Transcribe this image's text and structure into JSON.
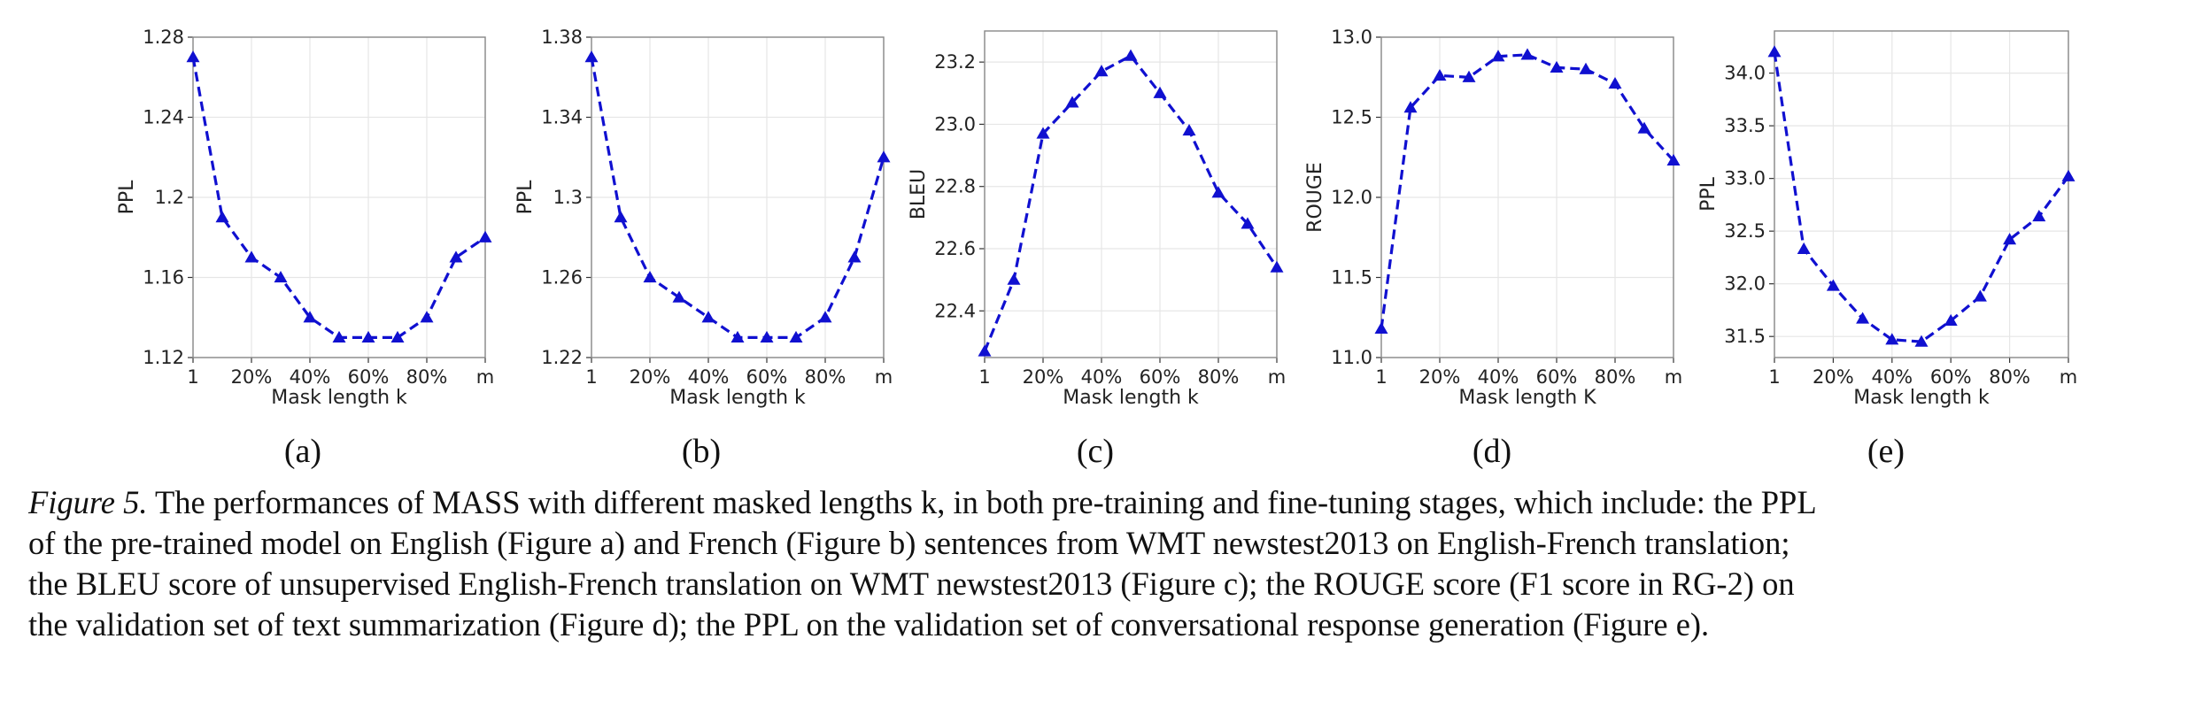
{
  "chart_data": [
    {
      "type": "line",
      "panel_label": "(a)",
      "title": "",
      "xlabel": "Mask length k",
      "ylabel": "PPL",
      "x_tick_labels": [
        "1",
        "20%",
        "40%",
        "60%",
        "80%",
        "m"
      ],
      "y_tick_labels": [
        "1.12",
        "1.16",
        "1.2",
        "1.24",
        "1.28"
      ],
      "ylim": [
        1.12,
        1.28
      ],
      "x": [
        1,
        2,
        3,
        4,
        5,
        6,
        7,
        8,
        9,
        10,
        11
      ],
      "values": [
        1.27,
        1.19,
        1.17,
        1.16,
        1.14,
        1.13,
        1.13,
        1.13,
        1.14,
        1.17,
        1.18
      ],
      "grid": true,
      "color": "#1010d0",
      "marker": "triangle-up",
      "line_style": "dashed"
    },
    {
      "type": "line",
      "panel_label": "(b)",
      "title": "",
      "xlabel": "Mask length k",
      "ylabel": "PPL",
      "x_tick_labels": [
        "1",
        "20%",
        "40%",
        "60%",
        "80%",
        "m"
      ],
      "y_tick_labels": [
        "1.22",
        "1.26",
        "1.3",
        "1.34",
        "1.38"
      ],
      "ylim": [
        1.22,
        1.38
      ],
      "x": [
        1,
        2,
        3,
        4,
        5,
        6,
        7,
        8,
        9,
        10,
        11
      ],
      "values": [
        1.37,
        1.29,
        1.26,
        1.25,
        1.24,
        1.23,
        1.23,
        1.23,
        1.24,
        1.27,
        1.32
      ],
      "grid": true,
      "color": "#1010d0",
      "marker": "triangle-up",
      "line_style": "dashed"
    },
    {
      "type": "line",
      "panel_label": "(c)",
      "title": "",
      "xlabel": "Mask length k",
      "ylabel": "BLEU",
      "x_tick_labels": [
        "1",
        "20%",
        "40%",
        "60%",
        "80%",
        "m"
      ],
      "y_tick_labels": [
        "22.4",
        "22.6",
        "22.8",
        "23.0",
        "23.2"
      ],
      "ylim": [
        22.25,
        23.3
      ],
      "x": [
        1,
        2,
        3,
        4,
        5,
        6,
        7,
        8,
        9,
        10,
        11
      ],
      "values": [
        22.27,
        22.5,
        22.97,
        23.07,
        23.17,
        23.22,
        23.1,
        22.98,
        22.78,
        22.68,
        22.54
      ],
      "grid": true,
      "color": "#1010d0",
      "marker": "triangle-up",
      "line_style": "dashed"
    },
    {
      "type": "line",
      "panel_label": "(d)",
      "title": "",
      "xlabel": "Mask length K",
      "ylabel": "ROUGE",
      "x_tick_labels": [
        "1",
        "20%",
        "40%",
        "60%",
        "80%",
        "m"
      ],
      "y_tick_labels": [
        "11.0",
        "11.5",
        "12.0",
        "12.5",
        "13.0"
      ],
      "ylim": [
        11.0,
        13.0
      ],
      "x": [
        1,
        2,
        3,
        4,
        5,
        6,
        7,
        8,
        9,
        10,
        11
      ],
      "values": [
        11.18,
        12.56,
        12.76,
        12.75,
        12.88,
        12.89,
        12.81,
        12.8,
        12.71,
        12.43,
        12.23
      ],
      "grid": true,
      "color": "#1010d0",
      "marker": "triangle-up",
      "line_style": "dashed"
    },
    {
      "type": "line",
      "panel_label": "(e)",
      "title": "",
      "xlabel": "Mask length k",
      "ylabel": "PPL",
      "x_tick_labels": [
        "1",
        "20%",
        "40%",
        "60%",
        "80%",
        "m"
      ],
      "y_tick_labels": [
        "31.5",
        "32.0",
        "32.5",
        "33.0",
        "33.5",
        "34.0"
      ],
      "ylim": [
        31.3,
        34.4
      ],
      "x": [
        1,
        2,
        3,
        4,
        5,
        6,
        7,
        8,
        9,
        10,
        11
      ],
      "values": [
        34.2,
        32.33,
        31.98,
        31.67,
        31.47,
        31.45,
        31.65,
        31.88,
        32.42,
        32.64,
        33.02
      ],
      "grid": true,
      "color": "#1010d0",
      "marker": "triangle-up",
      "line_style": "dashed"
    }
  ],
  "caption": {
    "label": "Figure 5.",
    "lines": [
      " The performances of MASS with different masked lengths k, in both pre-training and fine-tuning stages, which include: the PPL",
      "of the pre-trained model on English (Figure a) and French (Figure b) sentences from WMT newstest2013 on English-French translation;",
      "the BLEU score of unsupervised English-French translation on WMT newstest2013 (Figure c); the ROUGE score (F1 score in RG-2) on",
      "the validation set of text summarization (Figure d); the PPL on the validation set of conversational response generation (Figure e)."
    ]
  }
}
